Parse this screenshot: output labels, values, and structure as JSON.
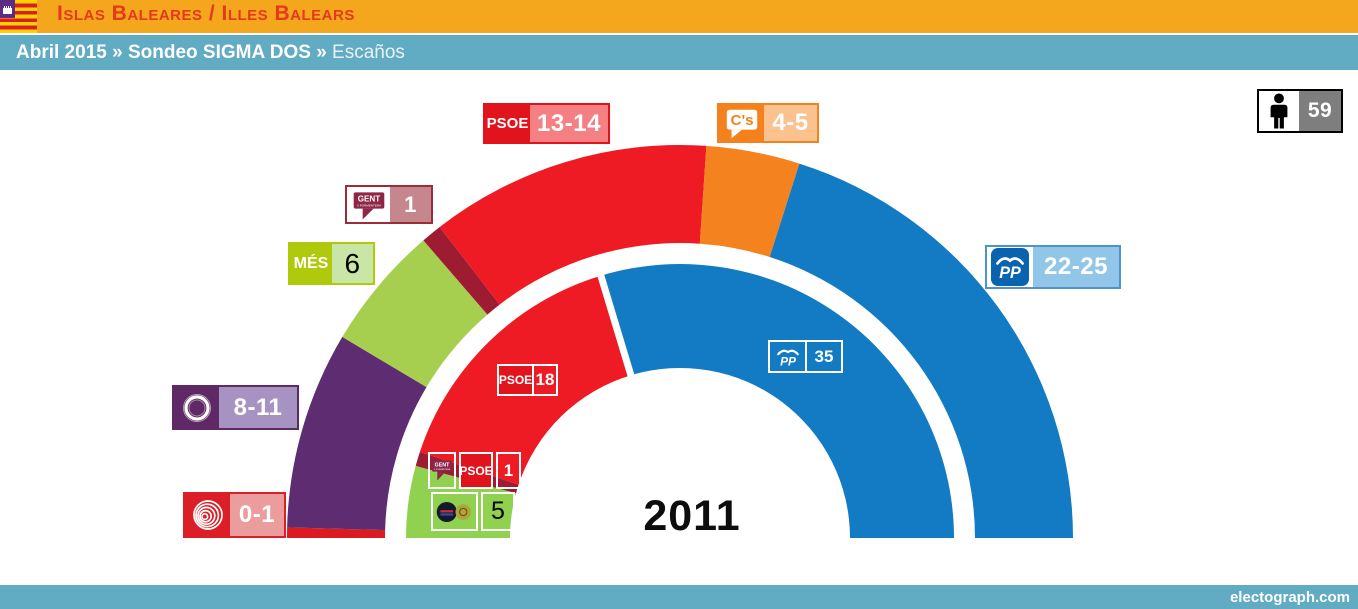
{
  "header": {
    "bar1": {
      "title": "Islas Baleares / Illes Balears",
      "flag_icon": "balearic-islands-flag"
    },
    "bar2": {
      "left_bold": "Abril 2015 » Sondeo SIGMA DOS »",
      "right_light": "Escaños"
    }
  },
  "footer": {
    "site": "electograph.com"
  },
  "total_badge": {
    "icon": "person-icon",
    "value": "59"
  },
  "center_year": "2011",
  "poll_labels": {
    "psoe": {
      "logo_text": "PSOE",
      "value": "13-14"
    },
    "cs": {
      "logo_text": "C's",
      "value": "4-5"
    },
    "gent": {
      "logo_text": "GENT",
      "logo_subtext": "X FORMENTERA",
      "value": "1"
    },
    "mes": {
      "logo_text": "MÉS",
      "value": "6"
    },
    "podemos": {
      "logo_icon": "podemos-circle-logo",
      "value": "8-11"
    },
    "eu": {
      "logo_icon": "eu-spiral-logo",
      "value": "0-1"
    },
    "pp": {
      "logo_text": "PP",
      "value": "22-25"
    }
  },
  "inner_labels": {
    "psoe": {
      "logo_text": "PSOE",
      "value": "18"
    },
    "pp": {
      "logo_text": "PP",
      "value": "35"
    },
    "gent_psoe": {
      "gent_logo_text": "GENT",
      "gent_logo_subtext": "X FORMENTERA",
      "psoe_logo_text": "PSOE",
      "value": "1"
    },
    "psm_iv": {
      "logo_icon": "psm-iv-circle-logos",
      "value": "5"
    }
  },
  "chart_data": {
    "type": "half-donut",
    "title": "Islas Baleares / Illes Balears — Abril 2015 — Sondeo SIGMA DOS — Escaños",
    "total_seats": 59,
    "rings": [
      {
        "name": "sondeo-abril-2015",
        "position": "outer",
        "segments": [
          {
            "party": "EU",
            "seats_label": "0-1",
            "value": 0.5,
            "color": "#DC1A22"
          },
          {
            "party": "Podemos",
            "seats_label": "8-11",
            "value": 9.5,
            "color": "#5E2D71"
          },
          {
            "party": "MÉS",
            "seats_label": "6",
            "value": 6,
            "color": "#A6CF50"
          },
          {
            "party": "Gent per Formentera",
            "seats_label": "1",
            "value": 1,
            "color": "#9D1C31"
          },
          {
            "party": "PSOE",
            "seats_label": "13-14",
            "value": 13.5,
            "color": "#EE1B24"
          },
          {
            "party": "C's",
            "seats_label": "4-5",
            "value": 4.5,
            "color": "#F4821F"
          },
          {
            "party": "PP",
            "seats_label": "22-25",
            "value": 23.5,
            "color": "#137AC4"
          }
        ]
      },
      {
        "name": "eleccion-2011",
        "position": "inner",
        "divider_at_value": 24,
        "segments": [
          {
            "party": "PSM-IV-ExM",
            "seats_label": "5",
            "value": 5,
            "color": "#90D150"
          },
          {
            "party": "Gent per Formentera-PSOE",
            "seats_label": "1",
            "value": 1,
            "color": "#9D1C31"
          },
          {
            "party": "PSOE",
            "seats_label": "18",
            "value": 18,
            "color": "#EE1B24"
          },
          {
            "party": "PP",
            "seats_label": "35",
            "value": 35,
            "color": "#137AC4"
          }
        ]
      }
    ]
  }
}
